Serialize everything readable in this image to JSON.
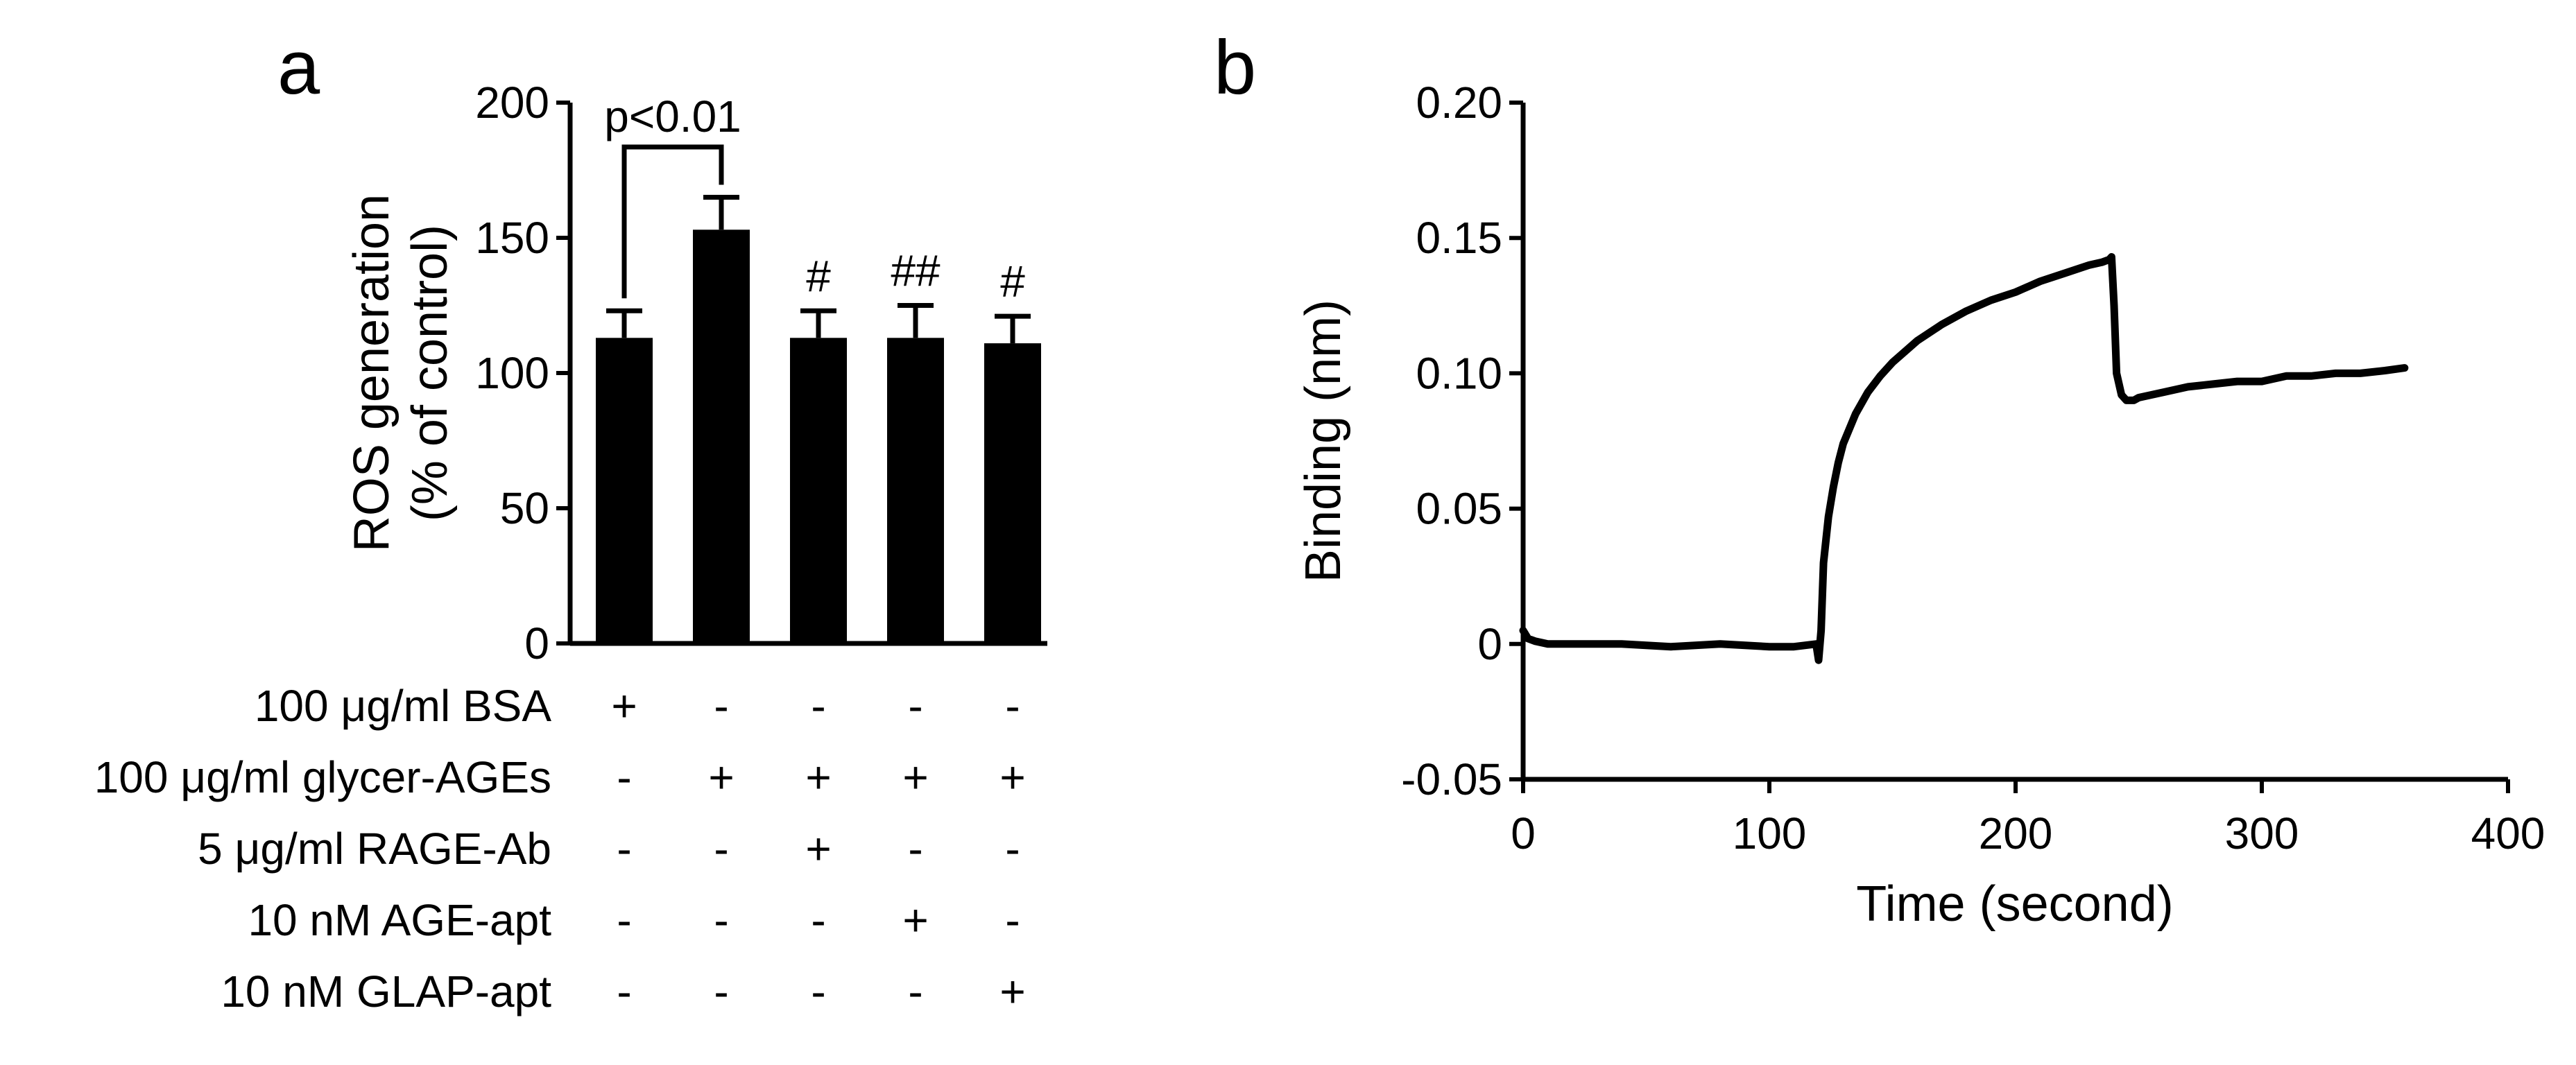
{
  "chart_data": [
    {
      "panel": "a",
      "type": "bar",
      "title": "",
      "xlabel": "",
      "ylabel": "ROS generation\n(% of control)",
      "ylabel_lines": [
        "ROS generation",
        "(% of control)"
      ],
      "ylim": [
        0,
        200
      ],
      "yticks": [
        0,
        50,
        100,
        150,
        200
      ],
      "ytick_labels": [
        "0",
        "50",
        "100",
        "150",
        "200"
      ],
      "categories": [
        "1",
        "2",
        "3",
        "4",
        "5"
      ],
      "values": [
        113,
        153,
        113,
        113,
        111
      ],
      "errors": [
        10,
        12,
        10,
        12,
        10
      ],
      "significance_marks": [
        "",
        "",
        "#",
        "##",
        "#"
      ],
      "annotations": [
        {
          "text": "p<0.01",
          "between": [
            0,
            1
          ]
        }
      ],
      "conditions": [
        {
          "label": "100 μg/ml BSA",
          "signs": [
            "+",
            "-",
            "-",
            "-",
            "-"
          ]
        },
        {
          "label": "100 μg/ml glycer-AGEs",
          "signs": [
            "-",
            "+",
            "+",
            "+",
            "+"
          ]
        },
        {
          "label": "5 μg/ml RAGE-Ab",
          "signs": [
            "-",
            "-",
            "+",
            "-",
            "-"
          ]
        },
        {
          "label": "10 nM AGE-apt",
          "signs": [
            "-",
            "-",
            "-",
            "+",
            "-"
          ]
        },
        {
          "label": "10 nM GLAP-apt",
          "signs": [
            "-",
            "-",
            "-",
            "-",
            "+"
          ]
        }
      ],
      "bar_color": "#000000",
      "grid": false,
      "legend": false
    },
    {
      "panel": "b",
      "type": "line",
      "title": "",
      "xlabel": "Time (second)",
      "ylabel": "Binding (nm)",
      "xlim": [
        0,
        400
      ],
      "ylim": [
        -0.05,
        0.2
      ],
      "xticks": [
        0,
        100,
        200,
        300,
        400
      ],
      "xtick_labels": [
        "0",
        "100",
        "200",
        "300",
        "400"
      ],
      "yticks": [
        -0.05,
        0,
        0.05,
        0.1,
        0.15,
        0.2
      ],
      "ytick_labels": [
        "-0.05",
        "0",
        "0.05",
        "0.10",
        "0.15",
        "0.20"
      ],
      "series": [
        {
          "color": "#000000",
          "x": [
            0,
            2,
            5,
            10,
            20,
            40,
            60,
            80,
            100,
            110,
            119,
            120,
            121,
            122,
            124,
            126,
            128,
            130,
            135,
            140,
            145,
            150,
            160,
            170,
            180,
            190,
            200,
            210,
            220,
            230,
            235,
            238,
            239,
            240,
            241,
            243,
            245,
            248,
            250,
            260,
            270,
            280,
            290,
            300,
            310,
            320,
            330,
            340,
            350,
            358
          ],
          "y": [
            0.005,
            0.002,
            0.001,
            0.0,
            0.0,
            0.0,
            -0.001,
            0.0,
            -0.001,
            -0.001,
            0.0,
            -0.006,
            0.005,
            0.03,
            0.047,
            0.058,
            0.067,
            0.074,
            0.085,
            0.093,
            0.099,
            0.104,
            0.112,
            0.118,
            0.123,
            0.127,
            0.13,
            0.134,
            0.137,
            0.14,
            0.141,
            0.142,
            0.143,
            0.125,
            0.1,
            0.092,
            0.09,
            0.09,
            0.091,
            0.093,
            0.095,
            0.096,
            0.097,
            0.097,
            0.099,
            0.099,
            0.1,
            0.1,
            0.101,
            0.102
          ]
        }
      ],
      "grid": false,
      "legend": false
    }
  ]
}
